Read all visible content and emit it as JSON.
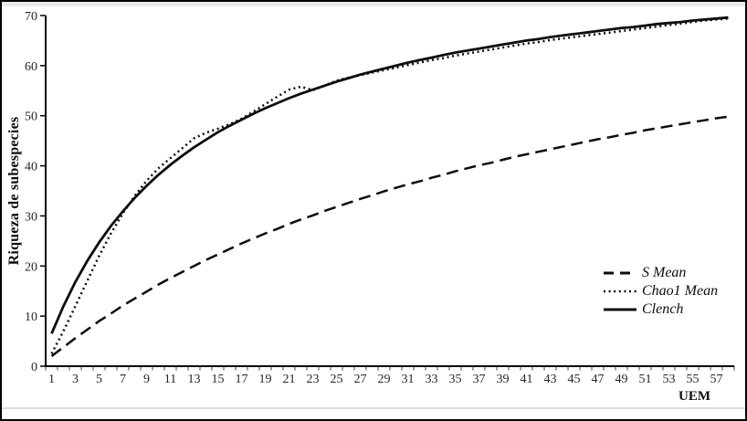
{
  "figure": {
    "kind": "species-accumulation-curves"
  },
  "legend": {
    "items": [
      {
        "label": "S Mean",
        "style": "dashed"
      },
      {
        "label": "Chao1 Mean",
        "style": "dotted"
      },
      {
        "label": "Clench",
        "style": "solid"
      }
    ]
  },
  "colors": {
    "line": "#0d0d0d",
    "axis": "#000000",
    "tick_text": "#262626",
    "top_strip": "#e9e9e9",
    "bottom_rule": "#dcdcdc",
    "background": "#ffffff"
  },
  "chart_data": {
    "type": "line",
    "title": "",
    "xlabel": "UEM",
    "ylabel": "Riqueza de subespecies",
    "ylim": [
      0,
      70
    ],
    "grid": false,
    "legend_position": "right-middle",
    "x": [
      1,
      2,
      3,
      4,
      5,
      6,
      7,
      8,
      9,
      10,
      11,
      12,
      13,
      14,
      15,
      16,
      17,
      18,
      19,
      20,
      21,
      22,
      23,
      24,
      25,
      26,
      27,
      28,
      29,
      30,
      31,
      32,
      33,
      34,
      35,
      36,
      37,
      38,
      39,
      40,
      41,
      42,
      43,
      44,
      45,
      46,
      47,
      48,
      49,
      50,
      51,
      52,
      53,
      54,
      55,
      56,
      57,
      58
    ],
    "x_tick_labels": [
      1,
      3,
      5,
      7,
      9,
      11,
      13,
      15,
      17,
      19,
      21,
      23,
      25,
      27,
      29,
      31,
      33,
      35,
      37,
      39,
      41,
      43,
      45,
      47,
      49,
      51,
      53,
      55,
      57
    ],
    "y_ticks": [
      0,
      10,
      20,
      30,
      40,
      50,
      60,
      70
    ],
    "series": [
      {
        "name": "S Mean",
        "style": "dashed",
        "color": "#0d0d0d",
        "values": [
          2.0,
          3.8,
          5.6,
          7.3,
          9.0,
          10.5,
          12.1,
          13.5,
          14.9,
          16.3,
          17.6,
          18.8,
          20.0,
          21.2,
          22.3,
          23.4,
          24.5,
          25.5,
          26.5,
          27.4,
          28.4,
          29.3,
          30.1,
          31.0,
          31.8,
          32.6,
          33.4,
          34.1,
          34.9,
          35.6,
          36.3,
          36.9,
          37.6,
          38.2,
          38.9,
          39.5,
          40.1,
          40.6,
          41.2,
          41.8,
          42.3,
          42.8,
          43.3,
          43.8,
          44.3,
          44.8,
          45.3,
          45.7,
          46.2,
          46.6,
          47.1,
          47.5,
          47.9,
          48.3,
          48.7,
          49.1,
          49.5,
          49.8
        ]
      },
      {
        "name": "Chao1 Mean",
        "style": "dotted",
        "color": "#0d0d0d",
        "values": [
          2.5,
          7.0,
          12.0,
          17.0,
          22.0,
          26.5,
          30.5,
          34.0,
          37.0,
          39.5,
          41.5,
          43.5,
          45.5,
          46.6,
          47.4,
          48.3,
          49.4,
          50.8,
          52.3,
          53.8,
          55.2,
          55.8,
          55.1,
          56.0,
          57.0,
          57.6,
          58.1,
          58.6,
          59.1,
          59.6,
          60.1,
          60.6,
          61.1,
          61.5,
          62.0,
          62.4,
          62.8,
          63.2,
          63.6,
          64.0,
          64.4,
          64.7,
          65.1,
          65.4,
          65.7,
          66.0,
          66.3,
          66.6,
          66.9,
          67.2,
          67.5,
          67.8,
          68.1,
          68.4,
          68.7,
          69.0,
          69.2,
          69.4
        ]
      },
      {
        "name": "Clench",
        "style": "solid",
        "color": "#0d0d0d",
        "values": [
          6.5,
          12.0,
          16.8,
          21.0,
          24.7,
          28.0,
          30.9,
          33.6,
          36.0,
          38.2,
          40.2,
          42.0,
          43.7,
          45.2,
          46.7,
          48.0,
          49.2,
          50.4,
          51.5,
          52.5,
          53.5,
          54.4,
          55.2,
          56.0,
          56.8,
          57.5,
          58.2,
          58.8,
          59.4,
          60.0,
          60.6,
          61.1,
          61.6,
          62.1,
          62.6,
          63.0,
          63.4,
          63.8,
          64.2,
          64.6,
          65.0,
          65.3,
          65.7,
          66.0,
          66.3,
          66.6,
          66.9,
          67.2,
          67.5,
          67.7,
          68.0,
          68.3,
          68.5,
          68.7,
          69.0,
          69.2,
          69.4,
          69.6
        ]
      }
    ]
  }
}
